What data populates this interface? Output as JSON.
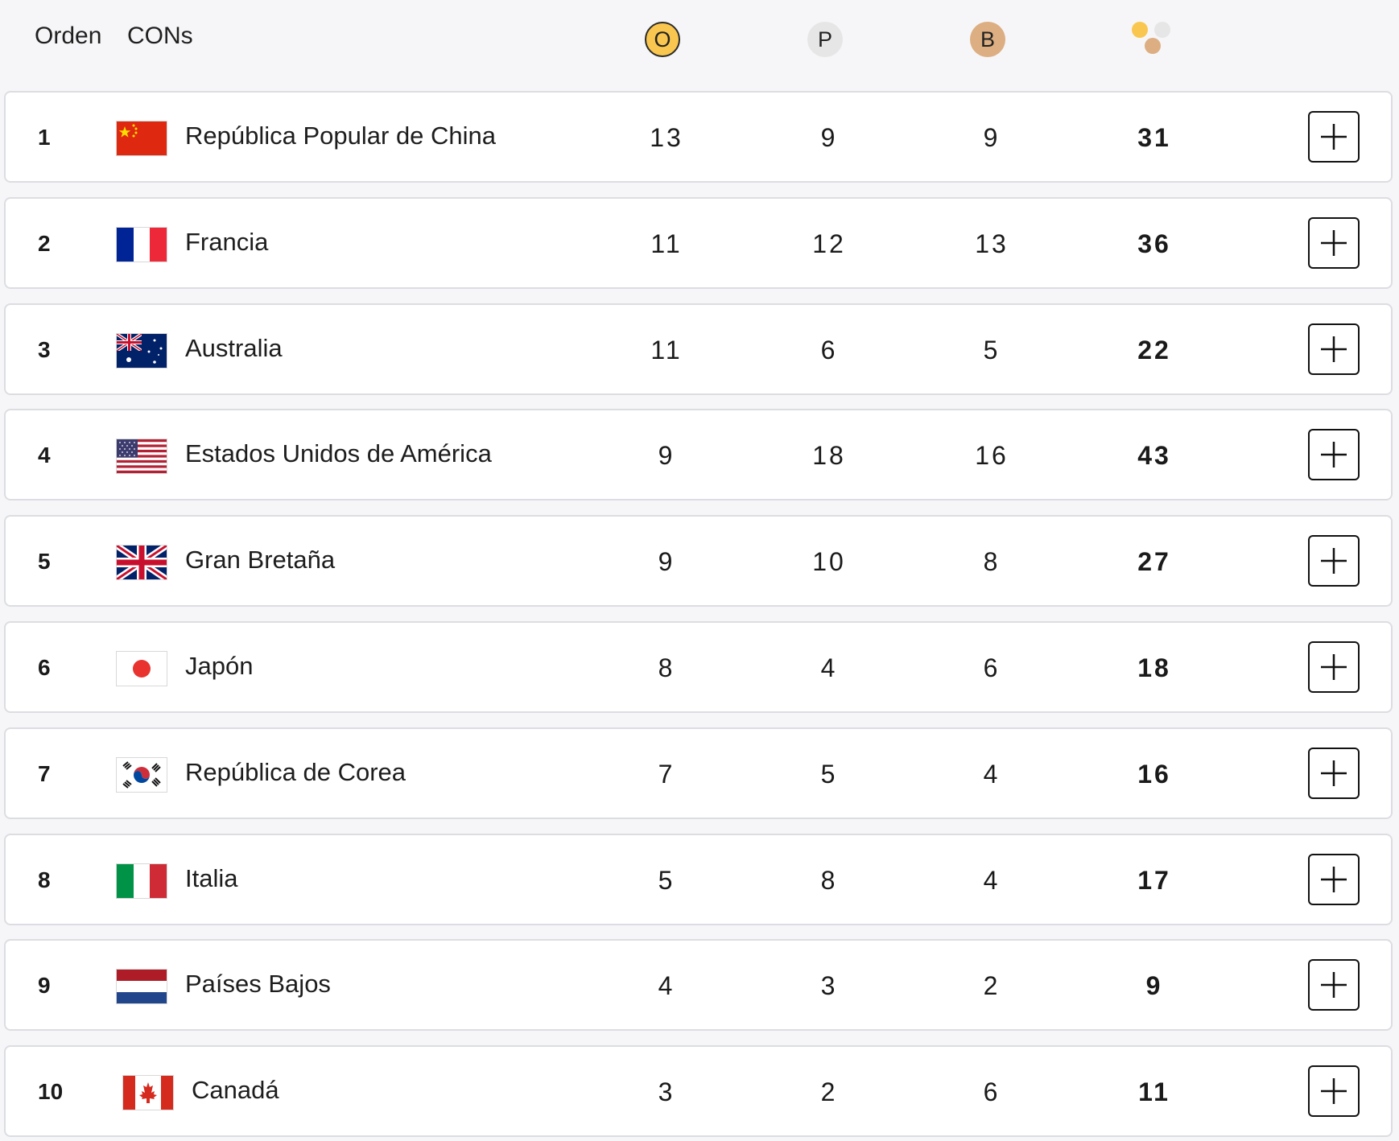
{
  "header": {
    "rank_label": "Orden",
    "noc_label": "CONs",
    "gold_label": "O",
    "silver_label": "P",
    "bronze_label": "B",
    "total_icon": "medals-total-icon"
  },
  "colors": {
    "gold": "#f9c74f",
    "silver": "#e6e6e6",
    "bronze": "#dcae82",
    "row_border": "#dcdde2"
  },
  "rows": [
    {
      "rank": "1",
      "country": "República Popular de China",
      "flag": "china-flag-icon",
      "gold": "13",
      "silver": "9",
      "bronze": "9",
      "total": "31"
    },
    {
      "rank": "2",
      "country": "Francia",
      "flag": "france-flag-icon",
      "gold": "11",
      "silver": "12",
      "bronze": "13",
      "total": "36"
    },
    {
      "rank": "3",
      "country": "Australia",
      "flag": "australia-flag-icon",
      "gold": "11",
      "silver": "6",
      "bronze": "5",
      "total": "22"
    },
    {
      "rank": "4",
      "country": "Estados Unidos de América",
      "flag": "usa-flag-icon",
      "gold": "9",
      "silver": "18",
      "bronze": "16",
      "total": "43"
    },
    {
      "rank": "5",
      "country": "Gran Bretaña",
      "flag": "great-britain-flag-icon",
      "gold": "9",
      "silver": "10",
      "bronze": "8",
      "total": "27"
    },
    {
      "rank": "6",
      "country": "Japón",
      "flag": "japan-flag-icon",
      "gold": "8",
      "silver": "4",
      "bronze": "6",
      "total": "18"
    },
    {
      "rank": "7",
      "country": "República de Corea",
      "flag": "korea-flag-icon",
      "gold": "7",
      "silver": "5",
      "bronze": "4",
      "total": "16"
    },
    {
      "rank": "8",
      "country": "Italia",
      "flag": "italy-flag-icon",
      "gold": "5",
      "silver": "8",
      "bronze": "4",
      "total": "17"
    },
    {
      "rank": "9",
      "country": "Países Bajos",
      "flag": "netherlands-flag-icon",
      "gold": "4",
      "silver": "3",
      "bronze": "2",
      "total": "9"
    },
    {
      "rank": "10",
      "country": "Canadá",
      "flag": "canada-flag-icon",
      "gold": "3",
      "silver": "2",
      "bronze": "6",
      "total": "11"
    }
  ]
}
